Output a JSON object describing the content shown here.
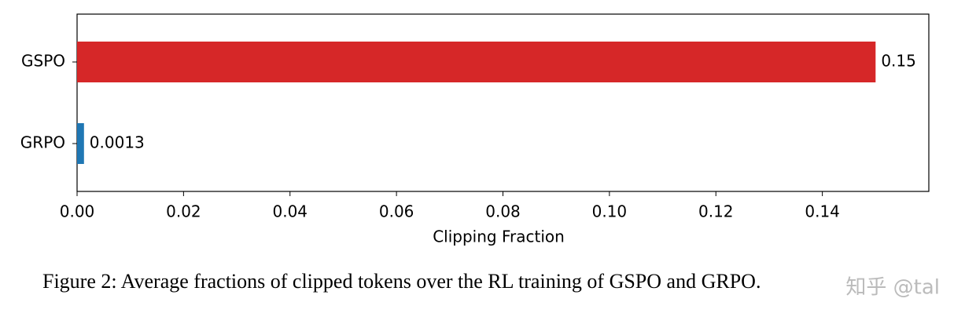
{
  "chart_data": {
    "type": "bar",
    "orientation": "horizontal",
    "categories": [
      "GSPO",
      "GRPO"
    ],
    "values": [
      0.15,
      0.0013
    ],
    "colors": [
      "#d62728",
      "#1f77b4"
    ],
    "xlabel": "Clipping Fraction",
    "xlim": [
      0,
      0.16
    ],
    "xticks": [
      {
        "value": 0,
        "label": "0.00"
      },
      {
        "value": 0.02,
        "label": "0.02"
      },
      {
        "value": 0.04,
        "label": "0.04"
      },
      {
        "value": 0.06,
        "label": "0.06"
      },
      {
        "value": 0.08,
        "label": "0.08"
      },
      {
        "value": 0.1,
        "label": "0.10"
      },
      {
        "value": 0.12,
        "label": "0.12"
      },
      {
        "value": 0.14,
        "label": "0.14"
      }
    ],
    "grid": false
  },
  "caption": "Figure 2: Average fractions of clipped tokens over the RL training of GSPO and GRPO.",
  "watermark": "知乎 @tal"
}
